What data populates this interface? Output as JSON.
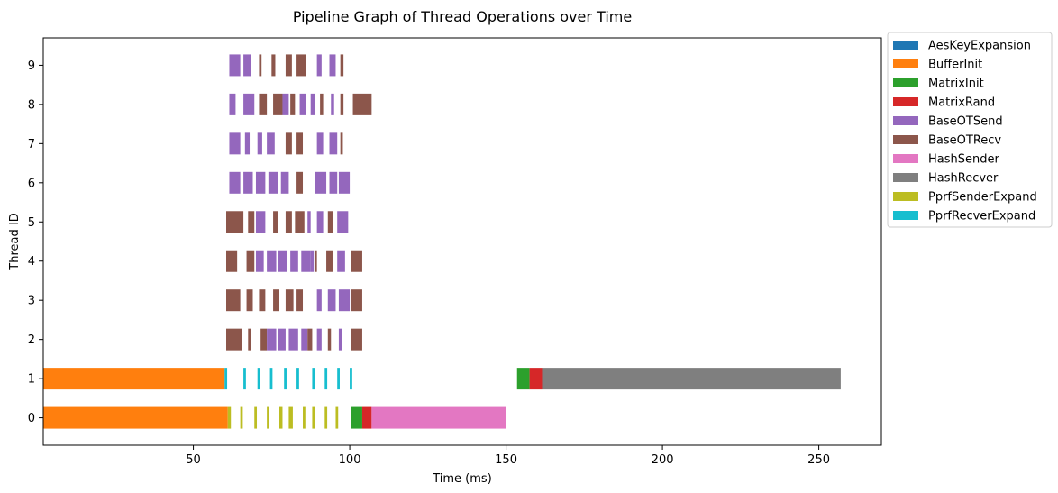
{
  "chart_data": {
    "type": "gantt",
    "title": "Pipeline Graph of Thread Operations over Time",
    "xlabel": "Time (ms)",
    "ylabel": "Thread ID",
    "xlim": [
      2,
      270
    ],
    "ylim": [
      -0.7,
      9.7
    ],
    "xticks": [
      50,
      100,
      150,
      200,
      250
    ],
    "yticks": [
      0,
      1,
      2,
      3,
      4,
      5,
      6,
      7,
      8,
      9
    ],
    "legend_position": "outside-top-right",
    "operations": [
      {
        "name": "AesKeyExpansion",
        "color": "#1f77b4"
      },
      {
        "name": "BufferInit",
        "color": "#ff7f0e"
      },
      {
        "name": "MatrixInit",
        "color": "#2ca02c"
      },
      {
        "name": "MatrixRand",
        "color": "#d62728"
      },
      {
        "name": "BaseOTSend",
        "color": "#9467bd"
      },
      {
        "name": "BaseOTRecv",
        "color": "#8c564b"
      },
      {
        "name": "HashSender",
        "color": "#e377c2"
      },
      {
        "name": "HashRecver",
        "color": "#7f7f7f"
      },
      {
        "name": "PprfSenderExpand",
        "color": "#bcbd22"
      },
      {
        "name": "PprfRecverExpand",
        "color": "#17becf"
      }
    ],
    "segments": [
      {
        "thread": 0,
        "op": "BufferInit",
        "start": 2,
        "end": 61
      },
      {
        "thread": 0,
        "op": "PprfSenderExpand",
        "start": 61,
        "end": 62
      },
      {
        "thread": 0,
        "op": "PprfSenderExpand",
        "start": 65,
        "end": 65.8
      },
      {
        "thread": 0,
        "op": "PprfSenderExpand",
        "start": 69.5,
        "end": 70.3
      },
      {
        "thread": 0,
        "op": "PprfSenderExpand",
        "start": 73.5,
        "end": 74.3
      },
      {
        "thread": 0,
        "op": "PprfSenderExpand",
        "start": 77.5,
        "end": 78.5
      },
      {
        "thread": 0,
        "op": "PprfSenderExpand",
        "start": 80.5,
        "end": 81.8
      },
      {
        "thread": 0,
        "op": "PprfSenderExpand",
        "start": 85,
        "end": 85.8
      },
      {
        "thread": 0,
        "op": "PprfSenderExpand",
        "start": 88,
        "end": 89
      },
      {
        "thread": 0,
        "op": "PprfSenderExpand",
        "start": 92,
        "end": 92.8
      },
      {
        "thread": 0,
        "op": "PprfSenderExpand",
        "start": 95.5,
        "end": 96.3
      },
      {
        "thread": 0,
        "op": "MatrixInit",
        "start": 100.5,
        "end": 104
      },
      {
        "thread": 0,
        "op": "MatrixRand",
        "start": 104,
        "end": 107
      },
      {
        "thread": 0,
        "op": "HashSender",
        "start": 107,
        "end": 150
      },
      {
        "thread": 1,
        "op": "BufferInit",
        "start": 2,
        "end": 60
      },
      {
        "thread": 1,
        "op": "PprfRecverExpand",
        "start": 60,
        "end": 60.8
      },
      {
        "thread": 1,
        "op": "PprfRecverExpand",
        "start": 66,
        "end": 66.8
      },
      {
        "thread": 1,
        "op": "PprfRecverExpand",
        "start": 70.5,
        "end": 71.3
      },
      {
        "thread": 1,
        "op": "PprfRecverExpand",
        "start": 74.5,
        "end": 75.3
      },
      {
        "thread": 1,
        "op": "PprfRecverExpand",
        "start": 79,
        "end": 79.8
      },
      {
        "thread": 1,
        "op": "PprfRecverExpand",
        "start": 83,
        "end": 83.8
      },
      {
        "thread": 1,
        "op": "PprfRecverExpand",
        "start": 88,
        "end": 88.8
      },
      {
        "thread": 1,
        "op": "PprfRecverExpand",
        "start": 92,
        "end": 92.8
      },
      {
        "thread": 1,
        "op": "PprfRecverExpand",
        "start": 96,
        "end": 96.8
      },
      {
        "thread": 1,
        "op": "PprfRecverExpand",
        "start": 100,
        "end": 100.8
      },
      {
        "thread": 1,
        "op": "MatrixInit",
        "start": 153.5,
        "end": 157.5
      },
      {
        "thread": 1,
        "op": "MatrixRand",
        "start": 157.5,
        "end": 161.5
      },
      {
        "thread": 1,
        "op": "HashRecver",
        "start": 161.5,
        "end": 257
      },
      {
        "thread": 2,
        "op": "BaseOTRecv",
        "start": 60.5,
        "end": 65.5
      },
      {
        "thread": 2,
        "op": "BaseOTRecv",
        "start": 67.5,
        "end": 68.5
      },
      {
        "thread": 2,
        "op": "BaseOTRecv",
        "start": 71.5,
        "end": 73.5
      },
      {
        "thread": 2,
        "op": "BaseOTSend",
        "start": 73.5,
        "end": 76.5
      },
      {
        "thread": 2,
        "op": "BaseOTSend",
        "start": 77,
        "end": 79.5
      },
      {
        "thread": 2,
        "op": "BaseOTSend",
        "start": 80.5,
        "end": 83.5
      },
      {
        "thread": 2,
        "op": "BaseOTSend",
        "start": 84.5,
        "end": 86.5
      },
      {
        "thread": 2,
        "op": "BaseOTRecv",
        "start": 86.5,
        "end": 88
      },
      {
        "thread": 2,
        "op": "BaseOTSend",
        "start": 89.5,
        "end": 91
      },
      {
        "thread": 2,
        "op": "BaseOTRecv",
        "start": 93,
        "end": 94
      },
      {
        "thread": 2,
        "op": "BaseOTSend",
        "start": 96.5,
        "end": 97.5
      },
      {
        "thread": 2,
        "op": "BaseOTRecv",
        "start": 100.5,
        "end": 104
      },
      {
        "thread": 3,
        "op": "BaseOTRecv",
        "start": 60.5,
        "end": 65
      },
      {
        "thread": 3,
        "op": "BaseOTRecv",
        "start": 67,
        "end": 69
      },
      {
        "thread": 3,
        "op": "BaseOTRecv",
        "start": 71,
        "end": 73
      },
      {
        "thread": 3,
        "op": "BaseOTRecv",
        "start": 75.5,
        "end": 77.5
      },
      {
        "thread": 3,
        "op": "BaseOTRecv",
        "start": 79.5,
        "end": 82
      },
      {
        "thread": 3,
        "op": "BaseOTRecv",
        "start": 83,
        "end": 85
      },
      {
        "thread": 3,
        "op": "BaseOTSend",
        "start": 89.5,
        "end": 91
      },
      {
        "thread": 3,
        "op": "BaseOTSend",
        "start": 93,
        "end": 95.5
      },
      {
        "thread": 3,
        "op": "BaseOTSend",
        "start": 96.5,
        "end": 100
      },
      {
        "thread": 3,
        "op": "BaseOTRecv",
        "start": 100.5,
        "end": 104
      },
      {
        "thread": 4,
        "op": "BaseOTRecv",
        "start": 60.5,
        "end": 64
      },
      {
        "thread": 4,
        "op": "BaseOTRecv",
        "start": 67,
        "end": 69.5
      },
      {
        "thread": 4,
        "op": "BaseOTSend",
        "start": 70,
        "end": 72.5
      },
      {
        "thread": 4,
        "op": "BaseOTSend",
        "start": 73.5,
        "end": 76.5
      },
      {
        "thread": 4,
        "op": "BaseOTSend",
        "start": 77,
        "end": 80
      },
      {
        "thread": 4,
        "op": "BaseOTSend",
        "start": 81,
        "end": 83.5
      },
      {
        "thread": 4,
        "op": "BaseOTSend",
        "start": 84.5,
        "end": 87.5
      },
      {
        "thread": 4,
        "op": "BaseOTSend",
        "start": 87.5,
        "end": 88.5
      },
      {
        "thread": 4,
        "op": "BaseOTRecv",
        "start": 89,
        "end": 89.5
      },
      {
        "thread": 4,
        "op": "BaseOTRecv",
        "start": 92.5,
        "end": 94.5
      },
      {
        "thread": 4,
        "op": "BaseOTSend",
        "start": 96,
        "end": 98.5
      },
      {
        "thread": 4,
        "op": "BaseOTRecv",
        "start": 100.5,
        "end": 104
      },
      {
        "thread": 5,
        "op": "BaseOTRecv",
        "start": 60.5,
        "end": 66
      },
      {
        "thread": 5,
        "op": "BaseOTRecv",
        "start": 67.5,
        "end": 69.5
      },
      {
        "thread": 5,
        "op": "BaseOTSend",
        "start": 70,
        "end": 73
      },
      {
        "thread": 5,
        "op": "BaseOTRecv",
        "start": 75.5,
        "end": 77
      },
      {
        "thread": 5,
        "op": "BaseOTRecv",
        "start": 79.5,
        "end": 81.5
      },
      {
        "thread": 5,
        "op": "BaseOTRecv",
        "start": 82.5,
        "end": 85.5
      },
      {
        "thread": 5,
        "op": "BaseOTSend",
        "start": 86.5,
        "end": 87.5
      },
      {
        "thread": 5,
        "op": "BaseOTSend",
        "start": 89.5,
        "end": 91.5
      },
      {
        "thread": 5,
        "op": "BaseOTRecv",
        "start": 93,
        "end": 94.5
      },
      {
        "thread": 5,
        "op": "BaseOTSend",
        "start": 96,
        "end": 99.5
      },
      {
        "thread": 6,
        "op": "BaseOTSend",
        "start": 61.5,
        "end": 65
      },
      {
        "thread": 6,
        "op": "BaseOTSend",
        "start": 66,
        "end": 69
      },
      {
        "thread": 6,
        "op": "BaseOTSend",
        "start": 70,
        "end": 73
      },
      {
        "thread": 6,
        "op": "BaseOTSend",
        "start": 74,
        "end": 77
      },
      {
        "thread": 6,
        "op": "BaseOTSend",
        "start": 78,
        "end": 80.5
      },
      {
        "thread": 6,
        "op": "BaseOTRecv",
        "start": 83,
        "end": 85
      },
      {
        "thread": 6,
        "op": "BaseOTSend",
        "start": 89,
        "end": 92.5
      },
      {
        "thread": 6,
        "op": "BaseOTSend",
        "start": 93.5,
        "end": 96
      },
      {
        "thread": 6,
        "op": "BaseOTSend",
        "start": 96.5,
        "end": 100
      },
      {
        "thread": 7,
        "op": "BaseOTSend",
        "start": 61.5,
        "end": 65
      },
      {
        "thread": 7,
        "op": "BaseOTSend",
        "start": 66.5,
        "end": 68
      },
      {
        "thread": 7,
        "op": "BaseOTSend",
        "start": 70.5,
        "end": 72
      },
      {
        "thread": 7,
        "op": "BaseOTSend",
        "start": 73.5,
        "end": 76
      },
      {
        "thread": 7,
        "op": "BaseOTRecv",
        "start": 79.5,
        "end": 81.5
      },
      {
        "thread": 7,
        "op": "BaseOTRecv",
        "start": 83,
        "end": 85
      },
      {
        "thread": 7,
        "op": "BaseOTSend",
        "start": 89.5,
        "end": 91.5
      },
      {
        "thread": 7,
        "op": "BaseOTSend",
        "start": 93.5,
        "end": 96
      },
      {
        "thread": 7,
        "op": "BaseOTRecv",
        "start": 97,
        "end": 97.8
      },
      {
        "thread": 8,
        "op": "BaseOTSend",
        "start": 61.5,
        "end": 63.5
      },
      {
        "thread": 8,
        "op": "BaseOTSend",
        "start": 66,
        "end": 69.5
      },
      {
        "thread": 8,
        "op": "BaseOTRecv",
        "start": 71,
        "end": 73.5
      },
      {
        "thread": 8,
        "op": "BaseOTRecv",
        "start": 75.5,
        "end": 78.5
      },
      {
        "thread": 8,
        "op": "BaseOTSend",
        "start": 78.5,
        "end": 80.5
      },
      {
        "thread": 8,
        "op": "BaseOTRecv",
        "start": 81,
        "end": 82.5
      },
      {
        "thread": 8,
        "op": "BaseOTSend",
        "start": 84,
        "end": 86
      },
      {
        "thread": 8,
        "op": "BaseOTSend",
        "start": 87.5,
        "end": 89
      },
      {
        "thread": 8,
        "op": "BaseOTRecv",
        "start": 90.5,
        "end": 91.5
      },
      {
        "thread": 8,
        "op": "BaseOTSend",
        "start": 94,
        "end": 95
      },
      {
        "thread": 8,
        "op": "BaseOTRecv",
        "start": 97,
        "end": 98
      },
      {
        "thread": 8,
        "op": "BaseOTRecv",
        "start": 101,
        "end": 107
      },
      {
        "thread": 9,
        "op": "BaseOTSend",
        "start": 61.5,
        "end": 65
      },
      {
        "thread": 9,
        "op": "BaseOTSend",
        "start": 66,
        "end": 68.5
      },
      {
        "thread": 9,
        "op": "BaseOTRecv",
        "start": 71,
        "end": 71.8
      },
      {
        "thread": 9,
        "op": "BaseOTRecv",
        "start": 75,
        "end": 76.2
      },
      {
        "thread": 9,
        "op": "BaseOTRecv",
        "start": 79.5,
        "end": 81.5
      },
      {
        "thread": 9,
        "op": "BaseOTRecv",
        "start": 83,
        "end": 86
      },
      {
        "thread": 9,
        "op": "BaseOTSend",
        "start": 89.5,
        "end": 91
      },
      {
        "thread": 9,
        "op": "BaseOTSend",
        "start": 93.5,
        "end": 95.5
      },
      {
        "thread": 9,
        "op": "BaseOTRecv",
        "start": 97,
        "end": 98
      }
    ]
  }
}
